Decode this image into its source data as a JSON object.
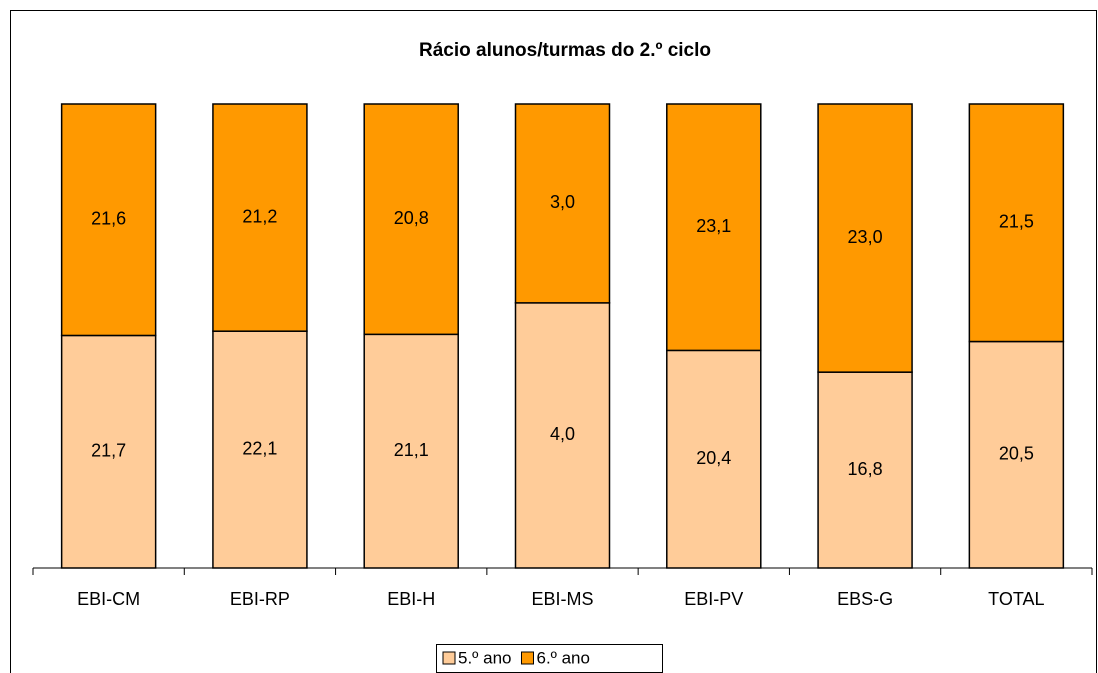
{
  "chart_data": {
    "type": "bar",
    "stacking": "percent",
    "title": "Rácio alunos/turmas do 2.º ciclo",
    "categories": [
      "EBI-CM",
      "EBI-RP",
      "EBI-H",
      "EBI-MS",
      "EBI-PV",
      "EBS-G",
      "TOTAL"
    ],
    "series": [
      {
        "name": "5.º ano",
        "color": "#ffcc99",
        "values": [
          21.7,
          22.1,
          21.1,
          4.0,
          20.4,
          16.8,
          20.5
        ],
        "value_labels": [
          "21,7",
          "22,1",
          "21,1",
          "4,0",
          "20,4",
          "16,8",
          "20,5"
        ]
      },
      {
        "name": "6.º ano",
        "color": "#ff9900",
        "values": [
          21.6,
          21.2,
          20.8,
          3.0,
          23.1,
          23.0,
          21.5
        ],
        "value_labels": [
          "21,6",
          "21,2",
          "20,8",
          "3,0",
          "23,1",
          "23,0",
          "21,5"
        ]
      }
    ],
    "legend": "bottom"
  }
}
